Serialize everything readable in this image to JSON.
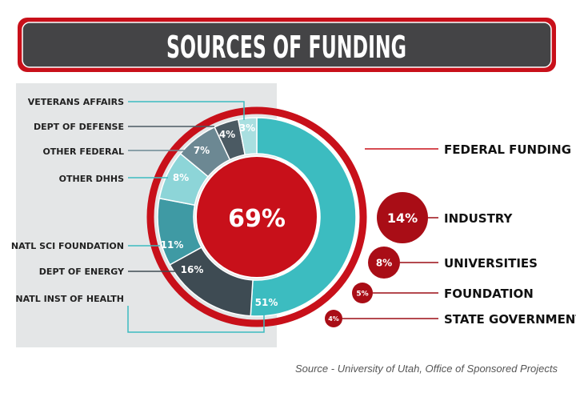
{
  "title": "SOURCES OF FUNDING",
  "source": "Source - University of Utah, Office of Sponsored Projects",
  "colors": {
    "red": "#c8101a",
    "dark_header": "#444446",
    "panel": "#e4e6e7"
  },
  "chart_data": [
    {
      "type": "pie",
      "title": "FEDERAL FUNDING",
      "total_label": "69%",
      "total_value": 69,
      "slices": [
        {
          "label": "NATL INST OF HEALTH",
          "value": 51,
          "value_label": "51%",
          "color": "#3cbcc0"
        },
        {
          "label": "DEPT OF ENERGY",
          "value": 16,
          "value_label": "16%",
          "color": "#3e4b53"
        },
        {
          "label": "NATL SCI FOUNDATION",
          "value": 11,
          "value_label": "11%",
          "color": "#3f9aa4"
        },
        {
          "label": "OTHER DHHS",
          "value": 8,
          "value_label": "8%",
          "color": "#8dd5d8"
        },
        {
          "label": "OTHER FEDERAL",
          "value": 7,
          "value_label": "7%",
          "color": "#6c8893"
        },
        {
          "label": "DEPT OF DEFENSE",
          "value": 4,
          "value_label": "4%",
          "color": "#4b5a63"
        },
        {
          "label": "VETERANS AFFAIRS",
          "value": 3,
          "value_label": "3%",
          "color": "#a9dfe0"
        }
      ]
    },
    {
      "type": "bubble",
      "items": [
        {
          "label": "INDUSTRY",
          "value": 14,
          "value_label": "14%"
        },
        {
          "label": "UNIVERSITIES",
          "value": 8,
          "value_label": "8%"
        },
        {
          "label": "FOUNDATION",
          "value": 5,
          "value_label": "5%"
        },
        {
          "label": "STATE GOVERNMENT",
          "value": 4,
          "value_label": "4%"
        }
      ]
    }
  ]
}
